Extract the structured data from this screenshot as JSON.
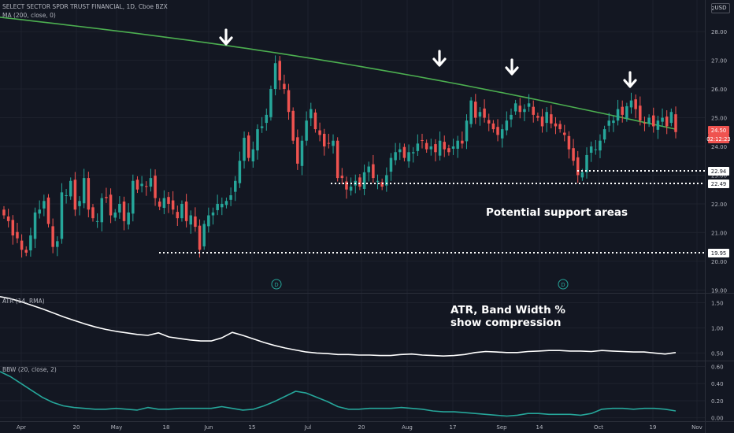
{
  "header": {
    "symbol_line": "SELECT SECTOR SPDR TRUST FINANCIAL, 1D, Cboe BZX",
    "ma_label": "MA (200, close, 0)",
    "currency": "USD",
    "atr_label": "ATR (14, RMA)",
    "bbw_label": "BBW (20, close, 2)"
  },
  "annotations": {
    "support": "Potential support areas",
    "compression_line1": "ATR, Band Width %",
    "compression_line2": "show compression",
    "dividend_marker": "D"
  },
  "badges": {
    "price": "24.50",
    "countdown": "02:12:23",
    "support_levels": [
      "22.94",
      "22.49",
      "19.95"
    ]
  },
  "colors": {
    "background": "#131722",
    "up": "#26a69a",
    "down": "#ef5350",
    "ma": "#4caf50",
    "atr": "#ffffff",
    "bbw": "#26a69a",
    "grid": "#1e222d",
    "text": "#b2b5be"
  },
  "chart_data": [
    {
      "type": "candlestick",
      "title": "SELECT SECTOR SPDR TRUST FINANCIAL, 1D, Cboe BZX",
      "x_ticks": [
        "Apr",
        "20",
        "May",
        "18",
        "Jun",
        "15",
        "Jul",
        "20",
        "Aug",
        "17",
        "Sep",
        "14",
        "Oct",
        "19",
        "Nov"
      ],
      "y_ticks": [
        19.0,
        20.0,
        21.0,
        22.0,
        23.0,
        24.0,
        25.0,
        26.0,
        27.0,
        28.0
      ],
      "ylim": [
        18.9,
        29.1
      ],
      "close": [
        21.6,
        21.4,
        20.9,
        20.8,
        20.4,
        20.3,
        20.9,
        21.7,
        21.8,
        22.1,
        21.3,
        20.5,
        20.7,
        22.4,
        22.3,
        22.8,
        21.8,
        22.1,
        22.9,
        21.8,
        21.5,
        21.4,
        22.2,
        22.2,
        21.6,
        21.7,
        22.0,
        21.4,
        21.7,
        22.8,
        22.5,
        22.7,
        22.6,
        22.9,
        22.2,
        21.9,
        22.2,
        22.0,
        21.8,
        21.5,
        22.0,
        21.4,
        21.6,
        21.2,
        20.4,
        21.3,
        21.6,
        21.7,
        22.0,
        22.0,
        22.1,
        22.3,
        22.8,
        23.5,
        24.3,
        23.6,
        23.9,
        24.6,
        24.7,
        25.1,
        26.0,
        26.9,
        26.3,
        26.0,
        25.2,
        24.2,
        23.4,
        24.2,
        24.9,
        25.3,
        24.6,
        24.4,
        24.0,
        24.1,
        24.2,
        22.9,
        22.9,
        22.5,
        22.6,
        22.8,
        22.6,
        23.1,
        23.3,
        22.9,
        22.8,
        22.6,
        23.0,
        23.6,
        23.8,
        23.9,
        23.6,
        23.8,
        23.8,
        24.1,
        24.2,
        23.9,
        24.0,
        23.8,
        24.2,
        23.9,
        23.8,
        24.0,
        24.2,
        24.1,
        24.9,
        25.6,
        25.0,
        25.2,
        25.0,
        24.8,
        24.6,
        24.4,
        24.6,
        24.9,
        25.1,
        25.5,
        25.2,
        25.3,
        25.5,
        25.1,
        25.0,
        24.7,
        25.2,
        24.8,
        24.7,
        24.6,
        24.4,
        23.9,
        23.5,
        23.0,
        23.1,
        23.7,
        24.0,
        23.9,
        24.2,
        24.6,
        24.9,
        24.9,
        25.3,
        25.1,
        25.4,
        25.6,
        25.3,
        24.9,
        24.8,
        25.0,
        24.7,
        24.9,
        25.0,
        24.7,
        25.2,
        24.5
      ],
      "series": [
        {
          "name": "MA (200, close, 0)",
          "start": 28.5,
          "end": 24.6
        }
      ]
    },
    {
      "type": "line",
      "title": "ATR (14, RMA)",
      "y_ticks": [
        0.5,
        1.0,
        1.5
      ],
      "ylim": [
        0.35,
        1.68
      ],
      "values": [
        1.62,
        1.58,
        1.52,
        1.45,
        1.38,
        1.3,
        1.22,
        1.15,
        1.08,
        1.02,
        0.97,
        0.93,
        0.9,
        0.87,
        0.85,
        0.9,
        0.82,
        0.79,
        0.76,
        0.74,
        0.74,
        0.8,
        0.91,
        0.85,
        0.78,
        0.71,
        0.65,
        0.6,
        0.56,
        0.52,
        0.5,
        0.49,
        0.47,
        0.47,
        0.46,
        0.46,
        0.45,
        0.45,
        0.47,
        0.48,
        0.46,
        0.45,
        0.44,
        0.45,
        0.47,
        0.51,
        0.53,
        0.52,
        0.51,
        0.51,
        0.53,
        0.54,
        0.55,
        0.55,
        0.54,
        0.54,
        0.53,
        0.55,
        0.54,
        0.53,
        0.52,
        0.52,
        0.5,
        0.48,
        0.51
      ]
    },
    {
      "type": "line",
      "title": "BBW (20, close, 2)",
      "y_ticks": [
        0.0,
        0.2,
        0.4,
        0.6
      ],
      "ylim": [
        -0.04,
        0.66
      ],
      "values": [
        0.54,
        0.48,
        0.4,
        0.32,
        0.24,
        0.18,
        0.14,
        0.12,
        0.11,
        0.1,
        0.1,
        0.11,
        0.1,
        0.09,
        0.12,
        0.1,
        0.1,
        0.11,
        0.11,
        0.11,
        0.11,
        0.13,
        0.11,
        0.09,
        0.1,
        0.14,
        0.19,
        0.25,
        0.31,
        0.29,
        0.24,
        0.19,
        0.13,
        0.1,
        0.1,
        0.11,
        0.11,
        0.11,
        0.12,
        0.11,
        0.1,
        0.08,
        0.07,
        0.07,
        0.06,
        0.05,
        0.04,
        0.03,
        0.02,
        0.03,
        0.05,
        0.05,
        0.04,
        0.04,
        0.04,
        0.03,
        0.05,
        0.1,
        0.11,
        0.11,
        0.1,
        0.11,
        0.11,
        0.1,
        0.08
      ]
    }
  ]
}
